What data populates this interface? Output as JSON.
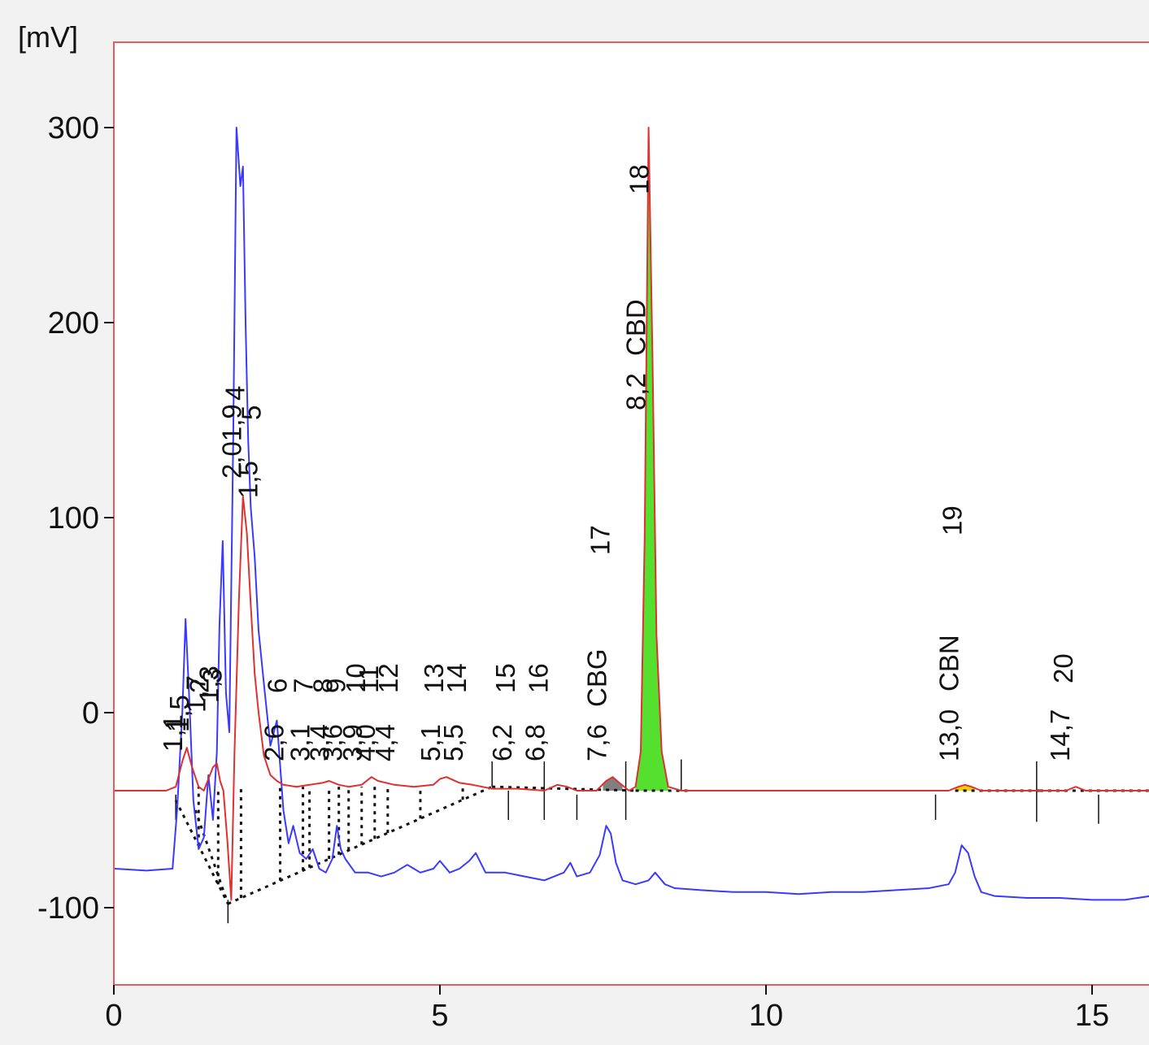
{
  "chart_data": {
    "type": "line",
    "title": "",
    "xlabel": "",
    "ylabel": "[mV]",
    "xlim": [
      0,
      16.8
    ],
    "ylim": [
      -145,
      345
    ],
    "xticks": [
      0,
      5,
      10,
      15
    ],
    "yticks": [
      -100,
      0,
      100,
      200,
      300
    ],
    "grid": false,
    "colors": {
      "frame": "#e06060",
      "blue_trace": "#3a3aff",
      "red_trace": "#e03030",
      "cbd_fill": "#55e030",
      "cbg_fill": "#808080",
      "cbn_fill": "#f0d000",
      "baseline": "#111111"
    },
    "series": [
      {
        "color": "#3a3aff",
        "x": [
          0,
          0.5,
          0.9,
          0.97,
          1.05,
          1.1,
          1.16,
          1.22,
          1.3,
          1.38,
          1.45,
          1.52,
          1.58,
          1.62,
          1.67,
          1.72,
          1.77,
          1.83,
          1.88,
          1.94,
          1.98,
          2.02,
          2.06,
          2.1,
          2.16,
          2.22,
          2.3,
          2.4,
          2.5,
          2.6,
          2.68,
          2.75,
          2.85,
          2.95,
          3.05,
          3.15,
          3.25,
          3.35,
          3.42,
          3.48,
          3.55,
          3.7,
          3.9,
          4.1,
          4.3,
          4.5,
          4.7,
          4.9,
          5.0,
          5.15,
          5.3,
          5.45,
          5.55,
          5.7,
          6.0,
          6.3,
          6.6,
          6.9,
          7.0,
          7.1,
          7.3,
          7.45,
          7.55,
          7.62,
          7.7,
          7.8,
          8.0,
          8.2,
          8.3,
          8.45,
          8.6,
          9.0,
          9.5,
          10.0,
          10.5,
          11.0,
          11.5,
          12.0,
          12.5,
          12.8,
          12.9,
          13.0,
          13.1,
          13.2,
          13.3,
          13.5,
          14.0,
          14.5,
          15.0,
          15.5,
          15.9,
          16.2,
          16.5,
          16.8
        ],
        "y": [
          -80,
          -81,
          -80,
          -50,
          0,
          48,
          5,
          -45,
          -70,
          -64,
          -32,
          -55,
          -20,
          45,
          88,
          10,
          -10,
          140,
          300,
          270,
          280,
          200,
          140,
          105,
          80,
          42,
          15,
          -17,
          -4,
          -50,
          -67,
          -58,
          -72,
          -75,
          -70,
          -80,
          -82,
          -75,
          -58,
          -70,
          -75,
          -82,
          -82,
          -84,
          -82,
          -78,
          -82,
          -80,
          -76,
          -82,
          -80,
          -76,
          -72,
          -82,
          -82,
          -84,
          -86,
          -82,
          -77,
          -84,
          -82,
          -73,
          -58,
          -62,
          -77,
          -86,
          -88,
          -86,
          -82,
          -88,
          -90,
          -91,
          -92,
          -92,
          -93,
          -92,
          -92,
          -91,
          -90,
          -88,
          -82,
          -68,
          -72,
          -84,
          -92,
          -94,
          -95,
          -95,
          -96,
          -96,
          -94,
          -90,
          -92,
          -96
        ]
      },
      {
        "color": "#e03030",
        "x": [
          0,
          0.8,
          0.95,
          1.05,
          1.12,
          1.2,
          1.3,
          1.38,
          1.45,
          1.52,
          1.58,
          1.63,
          1.68,
          1.74,
          1.8,
          1.85,
          1.92,
          1.98,
          2.04,
          2.1,
          2.16,
          2.22,
          2.3,
          2.4,
          2.5,
          2.6,
          2.8,
          3.0,
          3.2,
          3.3,
          3.45,
          3.6,
          3.8,
          3.95,
          4.05,
          4.3,
          4.6,
          4.9,
          5.0,
          5.1,
          5.3,
          5.5,
          5.8,
          6.2,
          6.6,
          6.8,
          6.95,
          7.1,
          7.4,
          7.55,
          7.65,
          7.75,
          7.9,
          8.0,
          8.08,
          8.14,
          8.2,
          8.26,
          8.32,
          8.4,
          8.5,
          8.7,
          9.0,
          10.0,
          11.0,
          12.0,
          12.8,
          12.95,
          13.05,
          13.15,
          13.3,
          14.0,
          14.6,
          14.75,
          14.9,
          15.2,
          16.0,
          16.8
        ],
        "y": [
          -40,
          -40,
          -38,
          -25,
          -18,
          -28,
          -38,
          -40,
          -34,
          -28,
          -26,
          -35,
          -40,
          -65,
          -96,
          -20,
          60,
          111,
          92,
          55,
          20,
          0,
          -22,
          -32,
          -35,
          -37,
          -38,
          -37,
          -36,
          -35,
          -37,
          -38,
          -37,
          -33,
          -35,
          -37,
          -38,
          -37,
          -34,
          -33,
          -36,
          -37,
          -39,
          -39,
          -40,
          -37,
          -38,
          -40,
          -40,
          -35,
          -33,
          -36,
          -40,
          -38,
          -20,
          90,
          300,
          180,
          40,
          -20,
          -38,
          -40,
          -40,
          -40,
          -40,
          -40,
          -40,
          -38,
          -37,
          -38,
          -40,
          -40,
          -40,
          -38,
          -40,
          -40,
          -40,
          -40
        ]
      }
    ],
    "peak_labels": [
      {
        "number": "1",
        "rt": "1,1"
      },
      {
        "number": "",
        "rt": "1,5"
      },
      {
        "number": "2",
        "rt": "1,7"
      },
      {
        "number": "3",
        "rt": "1,3"
      },
      {
        "number": "4",
        "rt": "2,01,9"
      },
      {
        "number": "5",
        "rt": "1,5"
      },
      {
        "number": "6",
        "rt": "2,6"
      },
      {
        "number": "7",
        "rt": "3,1"
      },
      {
        "number": "8",
        "rt": "3,4"
      },
      {
        "number": "9",
        "rt": "3,6"
      },
      {
        "number": "10",
        "rt": "3,9"
      },
      {
        "number": "11",
        "rt": "4,0"
      },
      {
        "number": "12",
        "rt": "4,4"
      },
      {
        "number": "13",
        "rt": "5,1"
      },
      {
        "number": "14",
        "rt": "5,5"
      },
      {
        "number": "15",
        "rt": "6,2"
      },
      {
        "number": "16",
        "rt": "6,8"
      },
      {
        "number": "17",
        "rt": "7,6",
        "name": "CBG"
      },
      {
        "number": "18",
        "rt": "8,2",
        "name": "CBD"
      },
      {
        "number": "19",
        "rt": "13,0",
        "name": "CBN"
      },
      {
        "number": "20",
        "rt": "14,7"
      }
    ]
  }
}
